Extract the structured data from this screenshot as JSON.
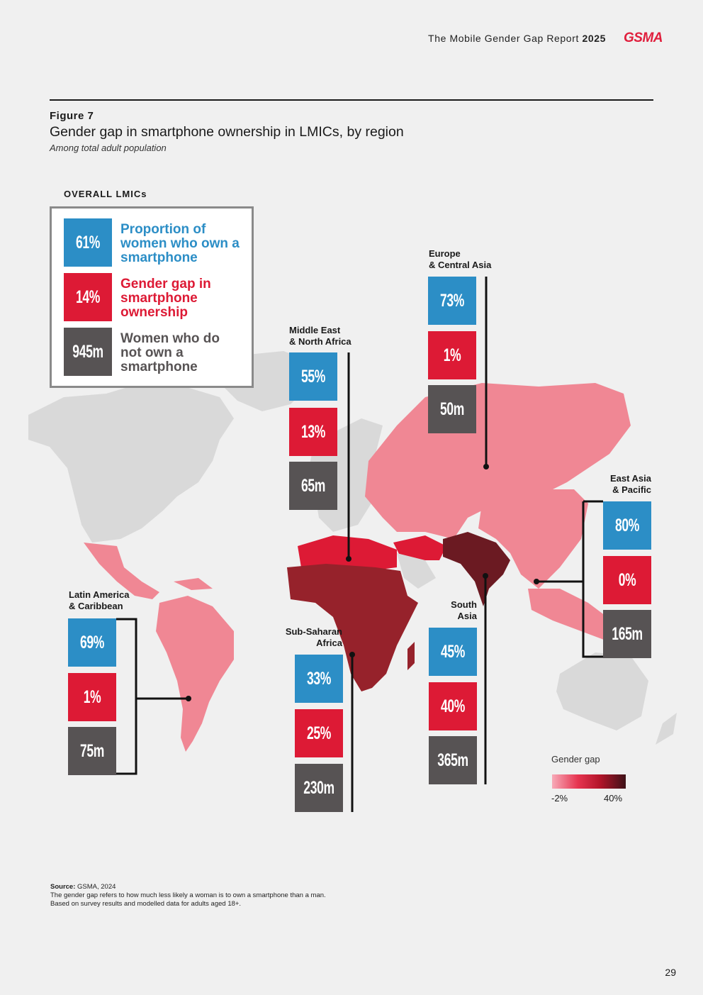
{
  "header": {
    "report": "The Mobile Gender Gap Report",
    "year": "2025",
    "logo": "GSMA"
  },
  "figure": {
    "label": "Figure 7",
    "title": "Gender gap in smartphone ownership in LMICs, by region",
    "subtitle": "Among total adult population"
  },
  "overall": {
    "label": "OVERALL LMICs",
    "items": [
      {
        "value": "61%",
        "text": "Proportion of women who own a smartphone",
        "color": "#2c8ec6"
      },
      {
        "value": "14%",
        "text": "Gender gap in smartphone ownership",
        "color": "#dd1a35"
      },
      {
        "value": "945m",
        "text": "Women who do not own a smartphone",
        "color": "#575354"
      }
    ]
  },
  "regions": {
    "eca": {
      "name1": "Europe",
      "name2": "& Central Asia",
      "own": "73%",
      "gap": "1%",
      "not_own": "50m"
    },
    "mena": {
      "name1": "Middle East",
      "name2": "& North Africa",
      "own": "55%",
      "gap": "13%",
      "not_own": "65m"
    },
    "eap": {
      "name1": "East Asia",
      "name2": "& Pacific",
      "own": "80%",
      "gap": "0%",
      "not_own": "165m"
    },
    "lac": {
      "name1": "Latin America",
      "name2": "& Caribbean",
      "own": "69%",
      "gap": "1%",
      "not_own": "75m"
    },
    "ssa": {
      "name1": "Sub-Saharan",
      "name2": "Africa",
      "own": "33%",
      "gap": "25%",
      "not_own": "230m"
    },
    "sa": {
      "name1": "South",
      "name2": "Asia",
      "own": "45%",
      "gap": "40%",
      "not_own": "365m"
    }
  },
  "legend": {
    "title": "Gender gap",
    "min": "-2%",
    "max": "40%"
  },
  "colors": {
    "own": "#2c8ec6",
    "gap": "#dd1a35",
    "not_own": "#575354",
    "land_other": "#d9d9d9"
  },
  "source": {
    "label": "Source:",
    "text": "GSMA, 2024",
    "note1": "The gender gap refers to how much less likely a woman is to own a smartphone than a man.",
    "note2": "Based on survey results and modelled data for adults aged 18+."
  },
  "page_number": "29"
}
